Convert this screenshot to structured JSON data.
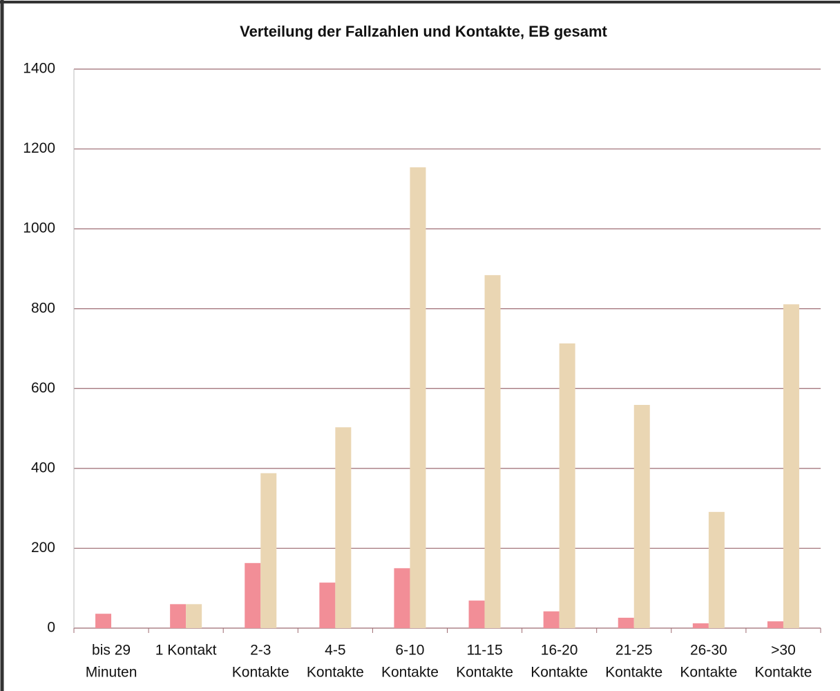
{
  "chart_data": {
    "type": "bar",
    "title": "Verteilung der Fallzahlen und Kontakte, EB gesamt",
    "categories": [
      [
        "bis 29",
        "Minuten"
      ],
      [
        "1 Kontakt"
      ],
      [
        "2-3",
        "Kontakte"
      ],
      [
        "4-5",
        "Kontakte"
      ],
      [
        "6-10",
        "Kontakte"
      ],
      [
        "11-15",
        "Kontakte"
      ],
      [
        "16-20",
        "Kontakte"
      ],
      [
        "21-25",
        "Kontakte"
      ],
      [
        "26-30",
        "Kontakte"
      ],
      [
        ">30",
        "Kontakte"
      ]
    ],
    "series": [
      {
        "color": "#f28e97",
        "values": [
          36,
          60,
          163,
          114,
          150,
          69,
          42,
          26,
          12,
          17
        ]
      },
      {
        "color": "#ead6b3",
        "values": [
          0,
          60,
          388,
          503,
          1154,
          884,
          713,
          559,
          291,
          811
        ]
      }
    ],
    "ylim": [
      0,
      1400
    ],
    "yticks": [
      0,
      200,
      400,
      600,
      800,
      1000,
      1200,
      1400
    ],
    "grid": true
  }
}
